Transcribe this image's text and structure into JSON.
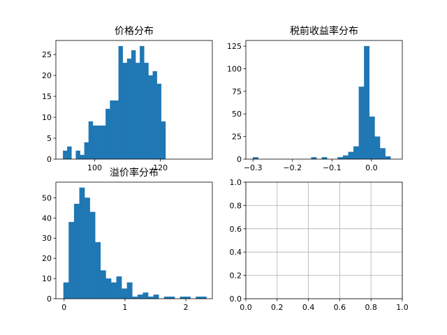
{
  "chart_data": [
    {
      "type": "bar",
      "title": "价格分布",
      "xlabel": "",
      "ylabel": "",
      "xlim": [
        88.2,
        135.8
      ],
      "ylim": [
        0,
        28.35
      ],
      "xticks": [
        100,
        120
      ],
      "yticks": [
        0,
        5,
        10,
        15,
        20,
        25
      ],
      "grid": false,
      "color": "#1f77b4",
      "bins": [
        {
          "x0": 90.37,
          "x1": 91.67,
          "value": 2
        },
        {
          "x0": 91.67,
          "x1": 92.97,
          "value": 3
        },
        {
          "x0": 92.97,
          "x1": 94.27,
          "value": 0
        },
        {
          "x0": 94.27,
          "x1": 95.57,
          "value": 2
        },
        {
          "x0": 95.57,
          "x1": 96.87,
          "value": 1
        },
        {
          "x0": 96.87,
          "x1": 98.17,
          "value": 4
        },
        {
          "x0": 98.17,
          "x1": 99.47,
          "value": 9
        },
        {
          "x0": 99.47,
          "x1": 100.77,
          "value": 8
        },
        {
          "x0": 100.77,
          "x1": 102.07,
          "value": 8
        },
        {
          "x0": 102.07,
          "x1": 103.37,
          "value": 8
        },
        {
          "x0": 103.37,
          "x1": 104.67,
          "value": 12
        },
        {
          "x0": 104.67,
          "x1": 105.97,
          "value": 14
        },
        {
          "x0": 105.97,
          "x1": 107.27,
          "value": 14
        },
        {
          "x0": 107.27,
          "x1": 108.57,
          "value": 27
        },
        {
          "x0": 108.57,
          "x1": 109.87,
          "value": 23
        },
        {
          "x0": 109.87,
          "x1": 111.17,
          "value": 24
        },
        {
          "x0": 111.17,
          "x1": 112.47,
          "value": 26
        },
        {
          "x0": 112.47,
          "x1": 113.77,
          "value": 23
        },
        {
          "x0": 113.77,
          "x1": 115.07,
          "value": 27
        },
        {
          "x0": 115.07,
          "x1": 116.37,
          "value": 23
        },
        {
          "x0": 116.37,
          "x1": 117.67,
          "value": 20
        },
        {
          "x0": 117.67,
          "x1": 118.97,
          "value": 21
        },
        {
          "x0": 118.97,
          "x1": 120.27,
          "value": 18
        },
        {
          "x0": 120.27,
          "x1": 121.57,
          "value": 9
        }
      ]
    },
    {
      "type": "bar",
      "title": "税前收益率分布",
      "xlabel": "",
      "ylabel": "",
      "xlim": [
        -0.318,
        0.078
      ],
      "ylim": [
        0,
        131.25
      ],
      "xticks": [
        -0.3,
        -0.2,
        -0.1,
        0.0
      ],
      "xtick_labels": [
        "−0.3",
        "−0.2",
        "−0.1",
        "0.0"
      ],
      "yticks": [
        0,
        25,
        50,
        75,
        100,
        125
      ],
      "grid": false,
      "color": "#1f77b4",
      "bins": [
        {
          "x0": -0.3,
          "x1": -0.2866,
          "value": 2
        },
        {
          "x0": -0.2866,
          "x1": -0.2732,
          "value": 0
        },
        {
          "x0": -0.2732,
          "x1": -0.2598,
          "value": 0
        },
        {
          "x0": -0.2598,
          "x1": -0.2464,
          "value": 0
        },
        {
          "x0": -0.2464,
          "x1": -0.233,
          "value": 0
        },
        {
          "x0": -0.233,
          "x1": -0.2196,
          "value": 0
        },
        {
          "x0": -0.2196,
          "x1": -0.2062,
          "value": 0
        },
        {
          "x0": -0.2062,
          "x1": -0.1928,
          "value": 0
        },
        {
          "x0": -0.1928,
          "x1": -0.1794,
          "value": 0
        },
        {
          "x0": -0.1794,
          "x1": -0.166,
          "value": 0
        },
        {
          "x0": -0.166,
          "x1": -0.1526,
          "value": 0
        },
        {
          "x0": -0.1526,
          "x1": -0.1392,
          "value": 2
        },
        {
          "x0": -0.1392,
          "x1": -0.1258,
          "value": 0
        },
        {
          "x0": -0.1258,
          "x1": -0.1124,
          "value": 2
        },
        {
          "x0": -0.1124,
          "x1": -0.099,
          "value": 0
        },
        {
          "x0": -0.099,
          "x1": -0.0856,
          "value": 0
        },
        {
          "x0": -0.0856,
          "x1": -0.0722,
          "value": 2
        },
        {
          "x0": -0.0722,
          "x1": -0.0588,
          "value": 4
        },
        {
          "x0": -0.0588,
          "x1": -0.0454,
          "value": 8
        },
        {
          "x0": -0.0454,
          "x1": -0.032,
          "value": 14
        },
        {
          "x0": -0.032,
          "x1": -0.0186,
          "value": 80
        },
        {
          "x0": -0.0186,
          "x1": -0.0052,
          "value": 125
        },
        {
          "x0": -0.0052,
          "x1": 0.0082,
          "value": 47
        },
        {
          "x0": 0.0082,
          "x1": 0.0216,
          "value": 25
        },
        {
          "x0": 0.0216,
          "x1": 0.035,
          "value": 12
        },
        {
          "x0": 0.035,
          "x1": 0.0484,
          "value": 3
        }
      ]
    },
    {
      "type": "bar",
      "title": "溢价率分布",
      "xlabel": "",
      "ylabel": "",
      "xlim": [
        -0.135,
        2.435
      ],
      "ylim": [
        0,
        57.75
      ],
      "xticks": [
        0,
        1,
        2
      ],
      "yticks": [
        0,
        10,
        20,
        30,
        40,
        50
      ],
      "grid": false,
      "color": "#1f77b4",
      "bins": [
        {
          "x0": -0.01,
          "x1": 0.077,
          "value": 8
        },
        {
          "x0": 0.077,
          "x1": 0.164,
          "value": 38
        },
        {
          "x0": 0.164,
          "x1": 0.251,
          "value": 47
        },
        {
          "x0": 0.251,
          "x1": 0.338,
          "value": 55
        },
        {
          "x0": 0.338,
          "x1": 0.425,
          "value": 50
        },
        {
          "x0": 0.425,
          "x1": 0.512,
          "value": 43
        },
        {
          "x0": 0.512,
          "x1": 0.599,
          "value": 28
        },
        {
          "x0": 0.599,
          "x1": 0.686,
          "value": 14
        },
        {
          "x0": 0.686,
          "x1": 0.773,
          "value": 10
        },
        {
          "x0": 0.773,
          "x1": 0.86,
          "value": 8
        },
        {
          "x0": 0.86,
          "x1": 0.947,
          "value": 11
        },
        {
          "x0": 0.947,
          "x1": 1.034,
          "value": 5
        },
        {
          "x0": 1.034,
          "x1": 1.121,
          "value": 8
        },
        {
          "x0": 1.121,
          "x1": 1.208,
          "value": 1
        },
        {
          "x0": 1.208,
          "x1": 1.295,
          "value": 2
        },
        {
          "x0": 1.295,
          "x1": 1.382,
          "value": 3
        },
        {
          "x0": 1.382,
          "x1": 1.469,
          "value": 1
        },
        {
          "x0": 1.469,
          "x1": 1.556,
          "value": 2
        },
        {
          "x0": 1.556,
          "x1": 1.643,
          "value": 0
        },
        {
          "x0": 1.643,
          "x1": 1.73,
          "value": 1
        },
        {
          "x0": 1.73,
          "x1": 1.817,
          "value": 1
        },
        {
          "x0": 1.817,
          "x1": 1.904,
          "value": 0
        },
        {
          "x0": 1.904,
          "x1": 1.991,
          "value": 1
        },
        {
          "x0": 1.991,
          "x1": 2.078,
          "value": 1
        },
        {
          "x0": 2.078,
          "x1": 2.165,
          "value": 0
        },
        {
          "x0": 2.165,
          "x1": 2.252,
          "value": 1
        },
        {
          "x0": 2.252,
          "x1": 2.339,
          "value": 1
        }
      ]
    },
    {
      "type": "line",
      "title": "",
      "xlabel": "",
      "ylabel": "",
      "xlim": [
        0,
        1
      ],
      "ylim": [
        0,
        1
      ],
      "xticks": [
        0.0,
        0.2,
        0.4,
        0.6,
        0.8,
        1.0
      ],
      "yticks": [
        0.0,
        0.2,
        0.4,
        0.6,
        0.8,
        1.0
      ],
      "xtick_labels": [
        "0.0",
        "0.2",
        "0.4",
        "0.6",
        "0.8",
        "1.0"
      ],
      "ytick_labels": [
        "0.0",
        "0.2",
        "0.4",
        "0.6",
        "0.8",
        "1.0"
      ],
      "grid": true,
      "series": []
    }
  ]
}
